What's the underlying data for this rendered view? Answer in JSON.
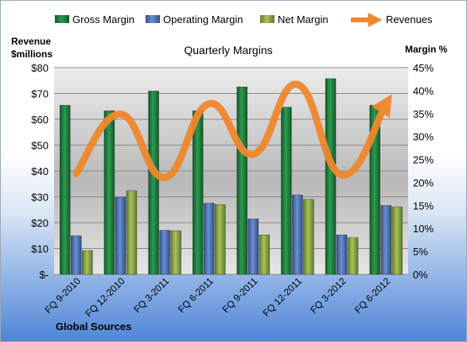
{
  "chart_data": {
    "type": "bar",
    "title": "Quarterly Margins",
    "source": "Global Sources",
    "categories": [
      "FQ 9-2010",
      "FQ 12-2010",
      "FQ 3-2011",
      "FQ 6-2011",
      "FQ 9-2011",
      "FQ 12-2011",
      "FQ 3-2012",
      "FQ 6-2012"
    ],
    "left_axis": {
      "label_line1": "Revenue",
      "label_line2": "$millions",
      "ylim": [
        0,
        80
      ],
      "ticks": [
        "$-",
        "$10",
        "$20",
        "$30",
        "$40",
        "$50",
        "$60",
        "$70",
        "$80"
      ]
    },
    "right_axis": {
      "label": "Margin %",
      "ylim": [
        0,
        45
      ],
      "ticks": [
        "0%",
        "5%",
        "10%",
        "15%",
        "20%",
        "25%",
        "30%",
        "35%",
        "40%",
        "45%"
      ]
    },
    "series": [
      {
        "name": "Gross Margin",
        "type": "bar",
        "axis": "right",
        "color": "#1e7a3c",
        "values": [
          36.8,
          35.6,
          39.9,
          35.6,
          40.8,
          36.4,
          42.6,
          36.8
        ]
      },
      {
        "name": "Operating Margin",
        "type": "bar",
        "axis": "right",
        "color": "#4a6fad",
        "values": [
          8.4,
          16.8,
          9.6,
          15.5,
          12.1,
          17.3,
          8.6,
          15.0
        ]
      },
      {
        "name": "Net Margin",
        "type": "bar",
        "axis": "right",
        "color": "#8aa443",
        "values": [
          5.2,
          18.2,
          9.5,
          15.2,
          8.6,
          16.3,
          8.0,
          14.7
        ]
      },
      {
        "name": "Revenues",
        "type": "line",
        "axis": "left",
        "color": "#f0882e",
        "values": [
          39,
          62,
          37.5,
          66,
          46.5,
          73.5,
          38.5,
          66
        ]
      }
    ],
    "grid": true,
    "legend": "top"
  }
}
